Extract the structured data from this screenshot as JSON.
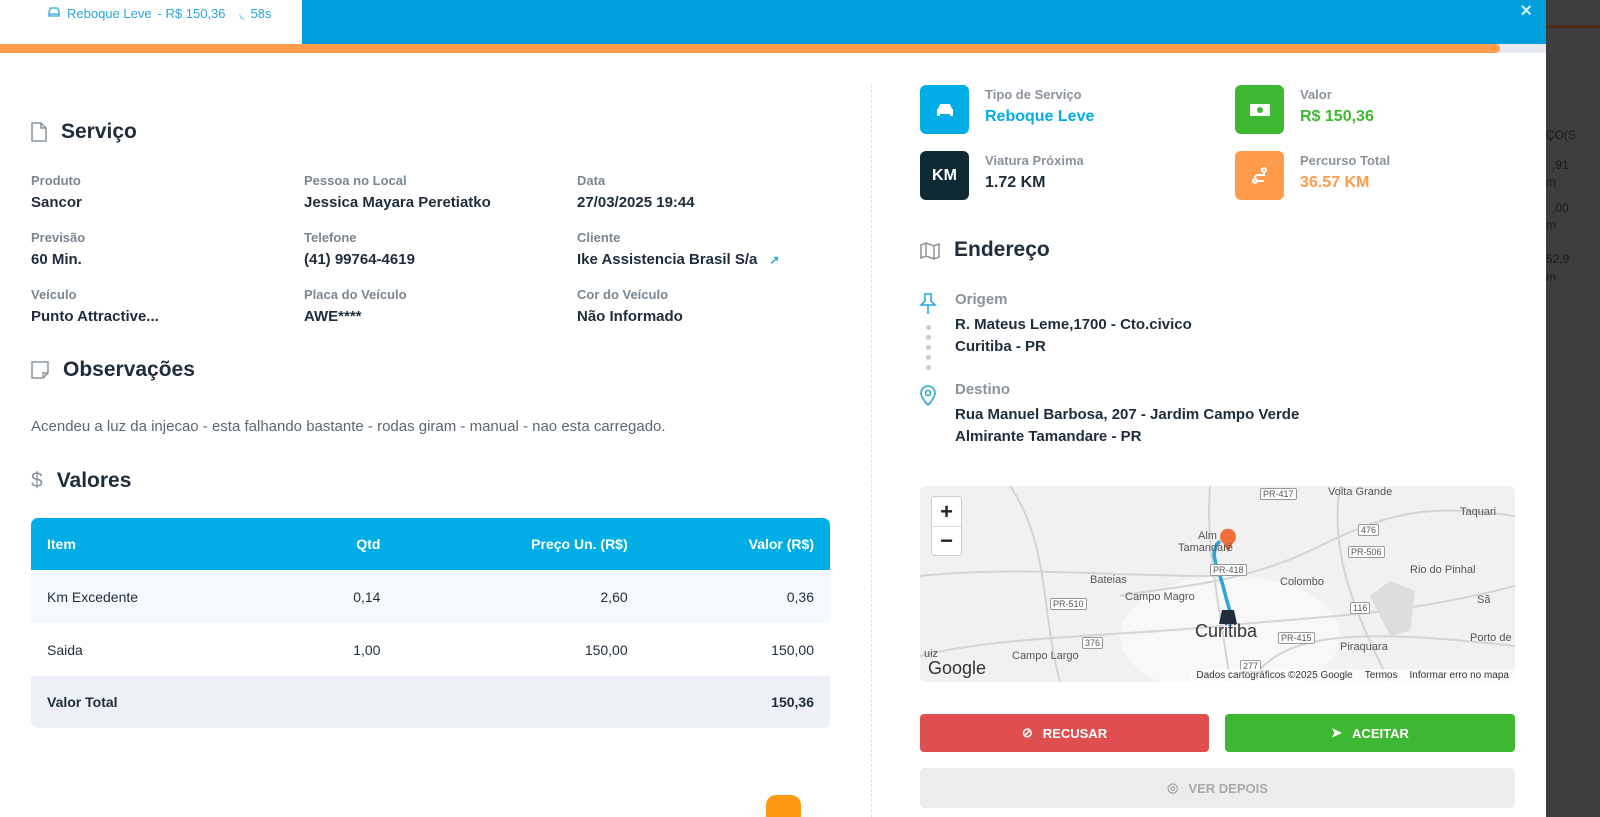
{
  "header": {
    "tab_service": "Reboque Leve",
    "tab_price": "- R$ 150,36",
    "tab_timer": "58s",
    "close": "×",
    "progress_percent": 97
  },
  "servico": {
    "title": "Serviço",
    "fields": [
      {
        "label": "Produto",
        "value": "Sancor"
      },
      {
        "label": "Pessoa no Local",
        "value": "Jessica Mayara Peretiatko"
      },
      {
        "label": "Data",
        "value": "27/03/2025 19:44"
      },
      {
        "label": "Previsão",
        "value": "60 Min."
      },
      {
        "label": "Telefone",
        "value": "(41) 99764-4619"
      },
      {
        "label": "Cliente",
        "value": "Ike Assistencia Brasil S/a"
      },
      {
        "label": "Veículo",
        "value": "Punto Attractive..."
      },
      {
        "label": "Placa do Veículo",
        "value": "AWE****"
      },
      {
        "label": "Cor do Veículo",
        "value": "Não Informado"
      }
    ]
  },
  "observacoes": {
    "title": "Observações",
    "text": "Acendeu a luz da injecao - esta falhando bastante - rodas giram - manual - nao esta carregado."
  },
  "valores": {
    "title": "Valores",
    "headers": [
      "Item",
      "Qtd",
      "Preço Un. (R$)",
      "Valor (R$)"
    ],
    "rows": [
      [
        "Km Excedente",
        "0,14",
        "2,60",
        "0,36"
      ],
      [
        "Saida",
        "1,00",
        "150,00",
        "150,00"
      ]
    ],
    "total_label": "Valor Total",
    "total": "150,36"
  },
  "cards": [
    {
      "label": "Tipo de Serviço",
      "value": "Reboque Leve",
      "color": "#00aee5",
      "icon": "car-icon"
    },
    {
      "label": "Valor",
      "value": "R$ 150,36",
      "color": "#3db832",
      "icon": "money-icon"
    },
    {
      "label": "Viatura Próxima",
      "value": "1.72 KM",
      "color": "#0e2a33",
      "icon": "km-icon",
      "icon_text": "KM"
    },
    {
      "label": "Percurso Total",
      "value": "36.57 KM",
      "color": "#ff9b4a",
      "icon": "route-icon"
    }
  ],
  "endereco": {
    "title": "Endereço",
    "origem_label": "Origem",
    "origem_line1": "R. Mateus Leme,1700 - Cto.civico",
    "origem_line2": "Curitiba - PR",
    "destino_label": "Destino",
    "destino_line1": "Rua Manuel Barbosa, 207 - Jardim Campo Verde",
    "destino_line2": "Almirante Tamandare - PR"
  },
  "map": {
    "zoom_in": "+",
    "zoom_out": "−",
    "labels": [
      "PR-417",
      "Volta Grande",
      "Taquari",
      "476",
      "Alm",
      "Tamandaré",
      "PR-506",
      "PR-418",
      "Rio do Pinhal",
      "Bateias",
      "Colombo",
      "Campo Magro",
      "PR-510",
      "116",
      "Curitiba",
      "PR-415",
      "Piraquara",
      "376",
      "Campo Largo",
      "277",
      "Porto de",
      "Sã",
      "uiz",
      "Google"
    ],
    "attribution": "Dados cartográficos ©2025 Google",
    "terms": "Termos",
    "report": "Informar erro no mapa"
  },
  "actions": {
    "refuse": "RECUSAR",
    "accept": "ACEITAR",
    "later": "VER DEPOIS",
    "refuse_color": "#e04f4f",
    "accept_color": "#3db832"
  },
  "background_partial": [
    "ÇO(S",
    ",91",
    "m",
    ",00",
    "m",
    "52,9",
    "m"
  ]
}
